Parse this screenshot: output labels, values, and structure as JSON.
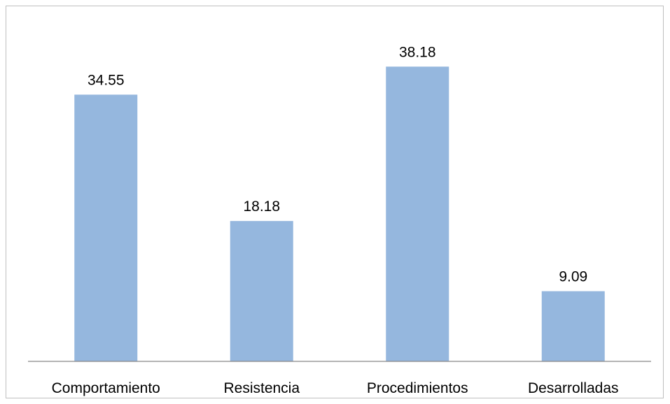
{
  "chart_data": {
    "type": "bar",
    "title": "",
    "xlabel": "",
    "ylabel": "",
    "categories": [
      "Comportamiento",
      "Resistencia",
      "Procedimientos",
      "Desarrolladas"
    ],
    "values": [
      34.55,
      18.18,
      38.18,
      9.09
    ],
    "data_labels": [
      "34.55",
      "18.18",
      "38.18",
      "9.09"
    ],
    "ylim": [
      0,
      45
    ],
    "grid": false,
    "legend": "none",
    "bar_color": "#95B7DE",
    "axis_color": "#868686"
  }
}
